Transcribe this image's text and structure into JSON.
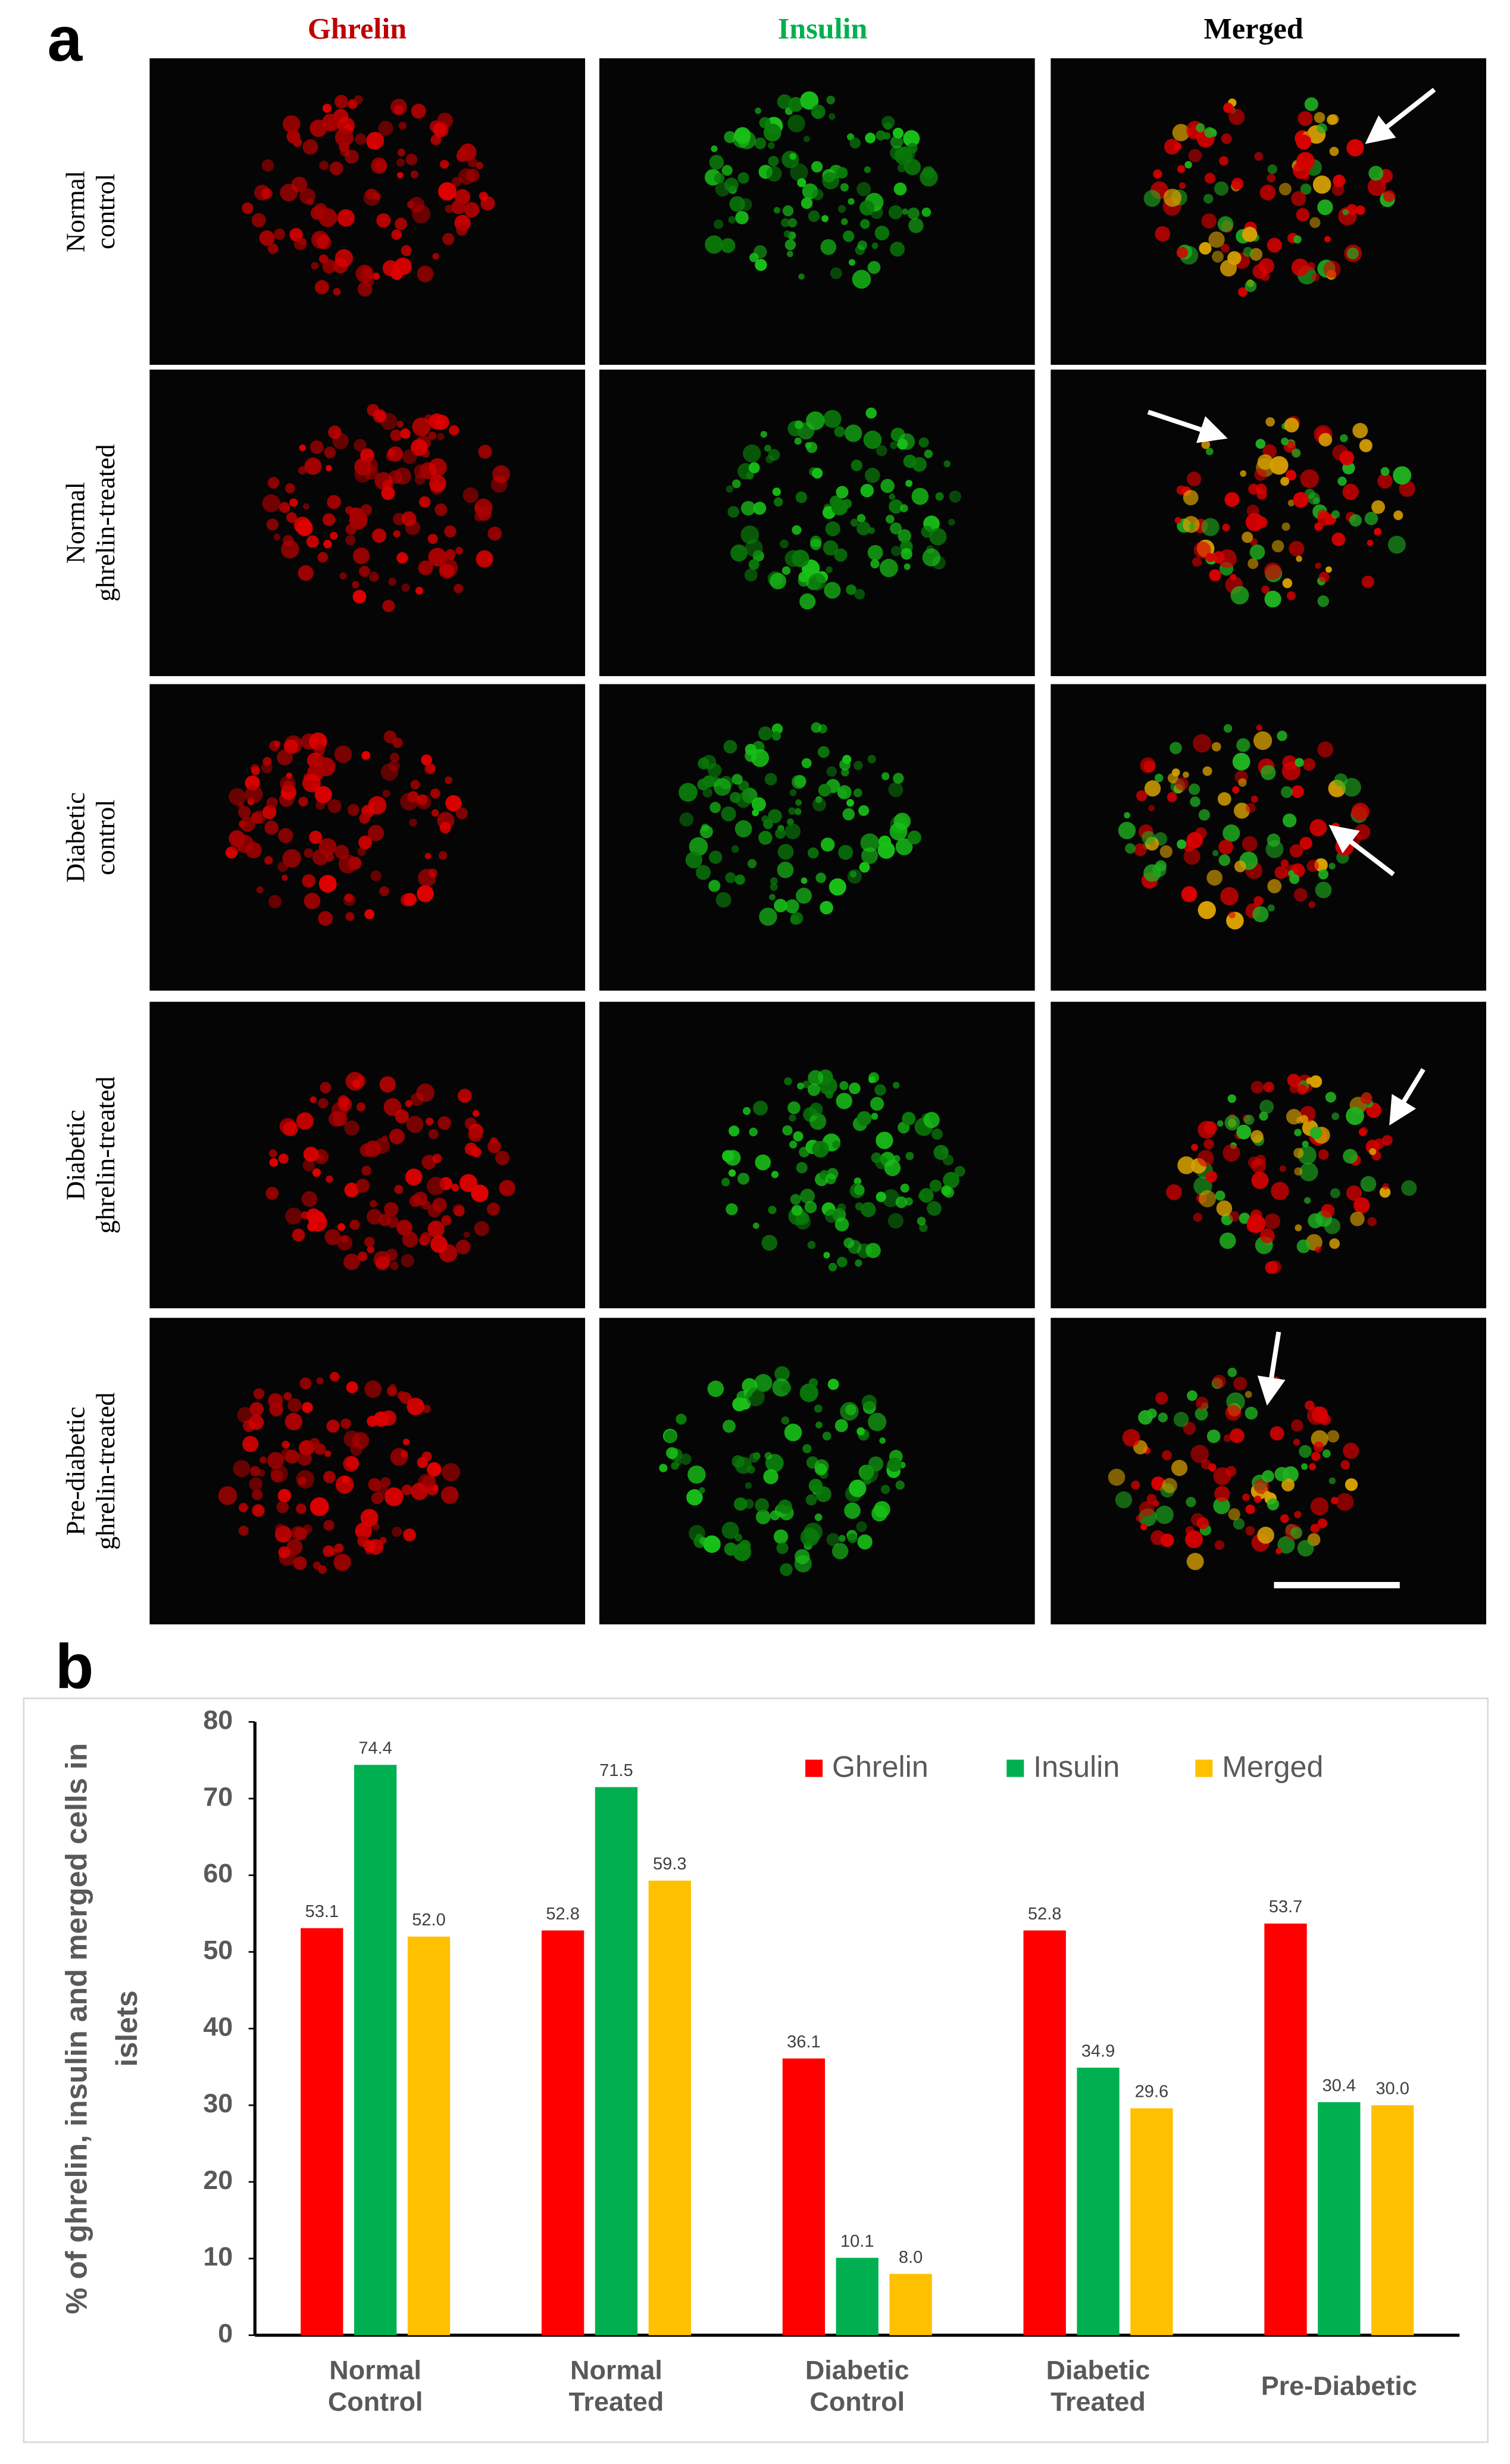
{
  "panel_labels": [
    "a",
    "b"
  ],
  "panel_a": {
    "columns": [
      "Ghrelin",
      "Insulin",
      "Merged"
    ],
    "rows": [
      "Normal control",
      "Normal ghrelin-treated",
      "Diabetic control",
      "Diabetic ghrelin-treated",
      "Pre-diabetic ghrelin-treated"
    ]
  },
  "chart_data": {
    "type": "bar",
    "ylabel": "% of ghrelin, insulin and merged cells in islets",
    "categories": [
      "Normal Control",
      "Normal Treated",
      "Diabetic Control",
      "Diabetic Treated",
      "Pre-Diabetic"
    ],
    "series": [
      {
        "name": "Ghrelin",
        "color": "#ff0000",
        "values": [
          53.1,
          52.8,
          36.1,
          52.8,
          53.7
        ],
        "value_labels": [
          "53.1",
          "52.8",
          "36.1",
          "52.8",
          "53.7"
        ]
      },
      {
        "name": "Insulin",
        "color": "#00b050",
        "values": [
          74.4,
          71.5,
          10.1,
          34.9,
          30.4
        ],
        "value_labels": [
          "74.4",
          "71.5",
          "10.1",
          "34.9",
          "30.4"
        ]
      },
      {
        "name": "Merged",
        "color": "#ffc000",
        "values": [
          52.0,
          59.3,
          8.0,
          29.6,
          30.0
        ],
        "value_labels": [
          "52.0",
          "59.3",
          "8.0",
          "29.6",
          "30.0"
        ]
      }
    ],
    "ylim": [
      0,
      80
    ],
    "yticks": [
      0,
      10,
      20,
      30,
      40,
      50,
      60,
      70,
      80
    ],
    "grid": false,
    "legend": "top-right"
  }
}
